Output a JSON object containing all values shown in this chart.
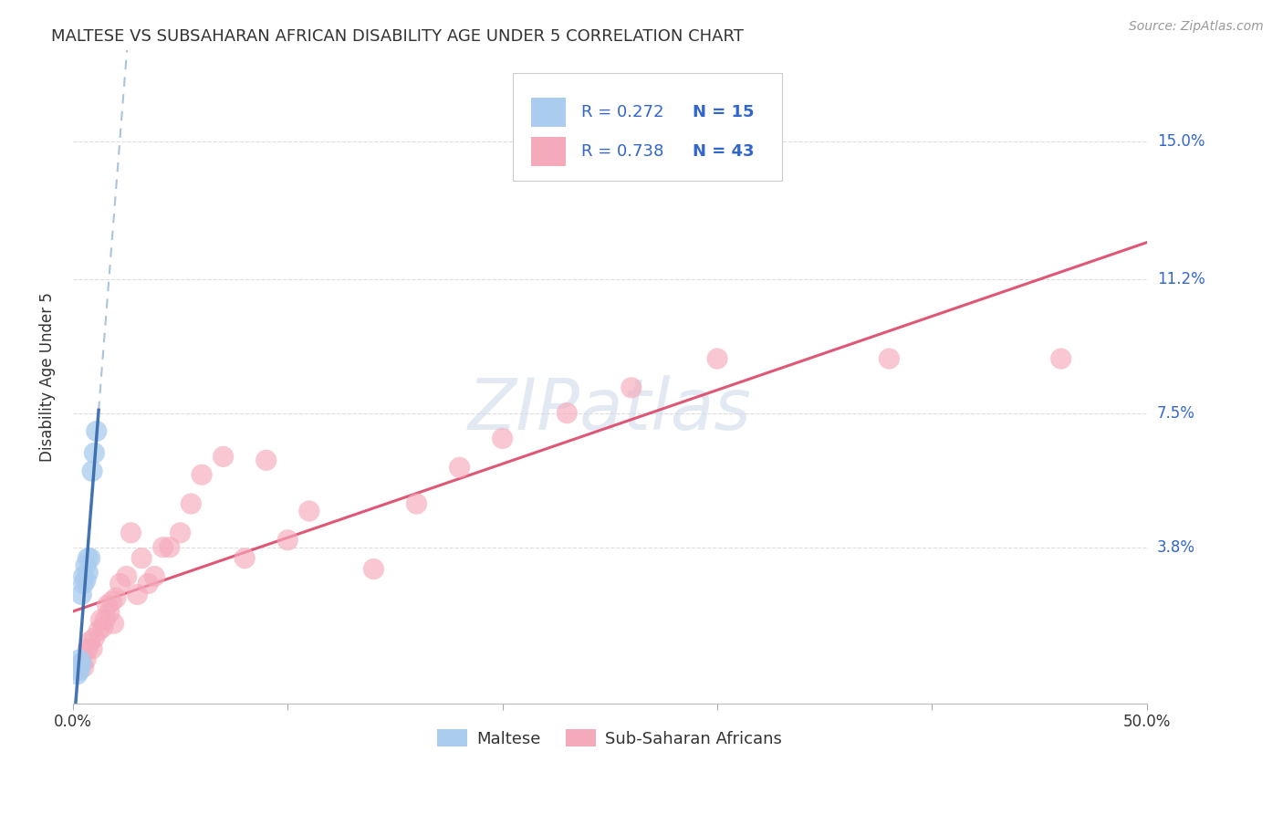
{
  "title": "MALTESE VS SUBSAHARAN AFRICAN DISABILITY AGE UNDER 5 CORRELATION CHART",
  "source": "Source: ZipAtlas.com",
  "ylabel": "Disability Age Under 5",
  "xlim": [
    0.0,
    0.5
  ],
  "ylim": [
    -0.005,
    0.175
  ],
  "ytick_positions": [
    0.038,
    0.075,
    0.112,
    0.15
  ],
  "ytick_labels": [
    "3.8%",
    "7.5%",
    "11.2%",
    "15.0%"
  ],
  "xtick_positions": [
    0.0,
    0.1,
    0.2,
    0.3,
    0.4,
    0.5
  ],
  "xtick_labels": [
    "0.0%",
    "",
    "",
    "",
    "",
    "50.0%"
  ],
  "background_color": "#ffffff",
  "grid_color": "#dddddd",
  "maltese_color": "#aaccee",
  "maltese_edge_color": "#aaccee",
  "maltese_line_color": "#3366aa",
  "maltese_dash_color": "#88aacc",
  "subsaharan_color": "#f5aabb",
  "subsaharan_edge_color": "#f5aabb",
  "subsaharan_line_color": "#dd4466",
  "legend_text_color": "#1a1a1a",
  "legend_R_color": "#3366cc",
  "watermark": "ZIPatlas",
  "watermark_color": "#ccd8e8",
  "R_maltese": 0.272,
  "N_maltese": 15,
  "R_subsaharan": 0.738,
  "N_subsaharan": 43,
  "maltese_x": [
    0.002,
    0.003,
    0.003,
    0.004,
    0.004,
    0.005,
    0.005,
    0.006,
    0.006,
    0.007,
    0.007,
    0.008,
    0.009,
    0.01,
    0.011
  ],
  "maltese_y": [
    0.003,
    0.004,
    0.007,
    0.006,
    0.025,
    0.028,
    0.03,
    0.029,
    0.033,
    0.031,
    0.035,
    0.035,
    0.059,
    0.064,
    0.07
  ],
  "subsaharan_x": [
    0.002,
    0.004,
    0.005,
    0.006,
    0.007,
    0.008,
    0.009,
    0.01,
    0.012,
    0.013,
    0.014,
    0.015,
    0.016,
    0.017,
    0.018,
    0.019,
    0.02,
    0.022,
    0.025,
    0.027,
    0.03,
    0.032,
    0.035,
    0.038,
    0.042,
    0.045,
    0.05,
    0.055,
    0.06,
    0.07,
    0.08,
    0.09,
    0.1,
    0.11,
    0.14,
    0.16,
    0.18,
    0.2,
    0.23,
    0.26,
    0.3,
    0.38,
    0.46
  ],
  "subsaharan_y": [
    0.004,
    0.006,
    0.005,
    0.007,
    0.01,
    0.012,
    0.01,
    0.013,
    0.015,
    0.018,
    0.016,
    0.018,
    0.022,
    0.02,
    0.023,
    0.017,
    0.024,
    0.028,
    0.03,
    0.042,
    0.025,
    0.035,
    0.028,
    0.03,
    0.038,
    0.038,
    0.042,
    0.05,
    0.058,
    0.063,
    0.035,
    0.062,
    0.04,
    0.048,
    0.032,
    0.05,
    0.06,
    0.068,
    0.075,
    0.082,
    0.09,
    0.09,
    0.09
  ]
}
